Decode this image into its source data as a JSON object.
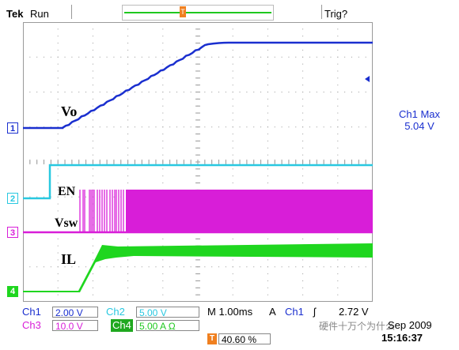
{
  "header": {
    "brand": "Tek",
    "run_state": "Run",
    "trigger_status": "Trig?"
  },
  "traces": {
    "vo_label": "Vo",
    "en_label": "EN",
    "vsw_label": "Vsw",
    "il_label": "IL"
  },
  "channel_markers": [
    "1",
    "2",
    "3",
    "4"
  ],
  "measurement": {
    "title": "Ch1 Max",
    "value": "5.04 V"
  },
  "settings": {
    "ch1_name": "Ch1",
    "ch1_scale": "2.00 V",
    "ch2_name": "Ch2",
    "ch2_scale": "5.00 V",
    "ch3_name": "Ch3",
    "ch3_scale": "10.0 V",
    "ch4_name": "Ch4",
    "ch4_scale": "5.00 A Ω",
    "timebase": "M 1.00ms",
    "trigger_mode": "A",
    "trigger_source": "Ch1",
    "trigger_slope": "ʃ",
    "trigger_level": "2.72 V",
    "trigger_position": "40.60 %",
    "date": "Sep 2009",
    "time": "15:16:37",
    "watermark": "硬件十万个为什么"
  },
  "colors": {
    "ch1": "#1a2fcf",
    "ch2": "#29c8e0",
    "ch3": "#d81ed8",
    "ch4": "#1fd61f",
    "trigger": "#f08020",
    "grid": "#9a9a9a"
  }
}
